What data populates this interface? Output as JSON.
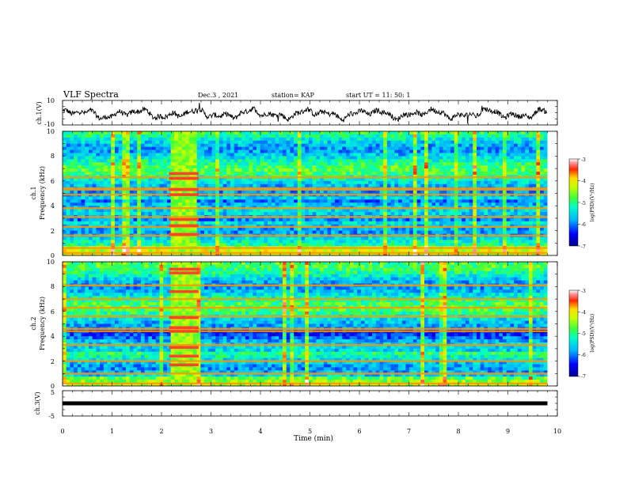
{
  "header": {
    "title": "VLF  Spectra",
    "date": "Dec.3  , 2021",
    "station": "station= KAP",
    "start_ut": "start  UT  =   11: 50: 1"
  },
  "chart_data": [
    {
      "type": "line",
      "ylabel": "ch.1(V)",
      "ylim": [
        -10,
        10
      ],
      "y_ticks": [
        "10",
        "-10"
      ],
      "xlim": [
        0,
        10
      ],
      "trace": "waveform",
      "x_end": 9.8,
      "color": "#000000"
    },
    {
      "type": "heatmap",
      "ylabel": "ch.1\nFrequency  (kHz)",
      "ylabel_lines": [
        "ch.1",
        "Frequency  (kHz)"
      ],
      "ylim": [
        0,
        10
      ],
      "y_ticks": [
        "0",
        "2",
        "4",
        "6",
        "8",
        "10"
      ],
      "xlim": [
        0,
        10
      ],
      "x_end": 9.8,
      "burst": [
        2.15,
        2.75
      ],
      "bands_khz": [
        0.2,
        0.6,
        1.6,
        2.3,
        3.1,
        3.8,
        4.9,
        5.3,
        5.4,
        6.3
      ],
      "burst_bands_khz": [
        1.7,
        2.4,
        2.9,
        4.9,
        5.3,
        6.2,
        6.6
      ],
      "colorbar": {
        "label": "log(PSD)(V²/Hz)",
        "range": [
          -7,
          -3
        ],
        "ticks": [
          "-3",
          "-4",
          "-5",
          "-6",
          "-7"
        ]
      }
    },
    {
      "type": "heatmap",
      "ylabel": "ch.2\nFrequency  (kHz)",
      "ylabel_lines": [
        "ch.2",
        "Frequency  (kHz)"
      ],
      "ylim": [
        0,
        10
      ],
      "y_ticks": [
        "0",
        "2",
        "4",
        "6",
        "8",
        "10"
      ],
      "xlim": [
        0,
        10
      ],
      "x_end": 9.8,
      "burst": [
        2.15,
        2.75
      ],
      "bands_khz": [
        0.2,
        1.0,
        2.0,
        3.3,
        4.4,
        4.6,
        5.6,
        6.3,
        7.0,
        8.1
      ],
      "burst_bands_khz": [
        1.7,
        2.4,
        3.1,
        4.4,
        4.7,
        5.5,
        7.6,
        9.1,
        9.4
      ],
      "colorbar": {
        "label": "log(PSD)(V²/Hz)",
        "range": [
          -7,
          -3
        ],
        "ticks": [
          "-3",
          "-4",
          "-5",
          "-6",
          "-7"
        ]
      }
    },
    {
      "type": "line",
      "ylabel": "ch.3(V)",
      "ylim": [
        -5,
        5
      ],
      "y_ticks": [
        "5",
        "-5"
      ],
      "xlim": [
        0,
        10
      ],
      "trace": "flat",
      "level": 0,
      "x_end": 9.8,
      "color": "#000000"
    }
  ],
  "xaxis": {
    "label": "Time  (min)",
    "ticks": [
      "0",
      "1",
      "2",
      "3",
      "4",
      "5",
      "6",
      "7",
      "8",
      "9",
      "10"
    ]
  }
}
